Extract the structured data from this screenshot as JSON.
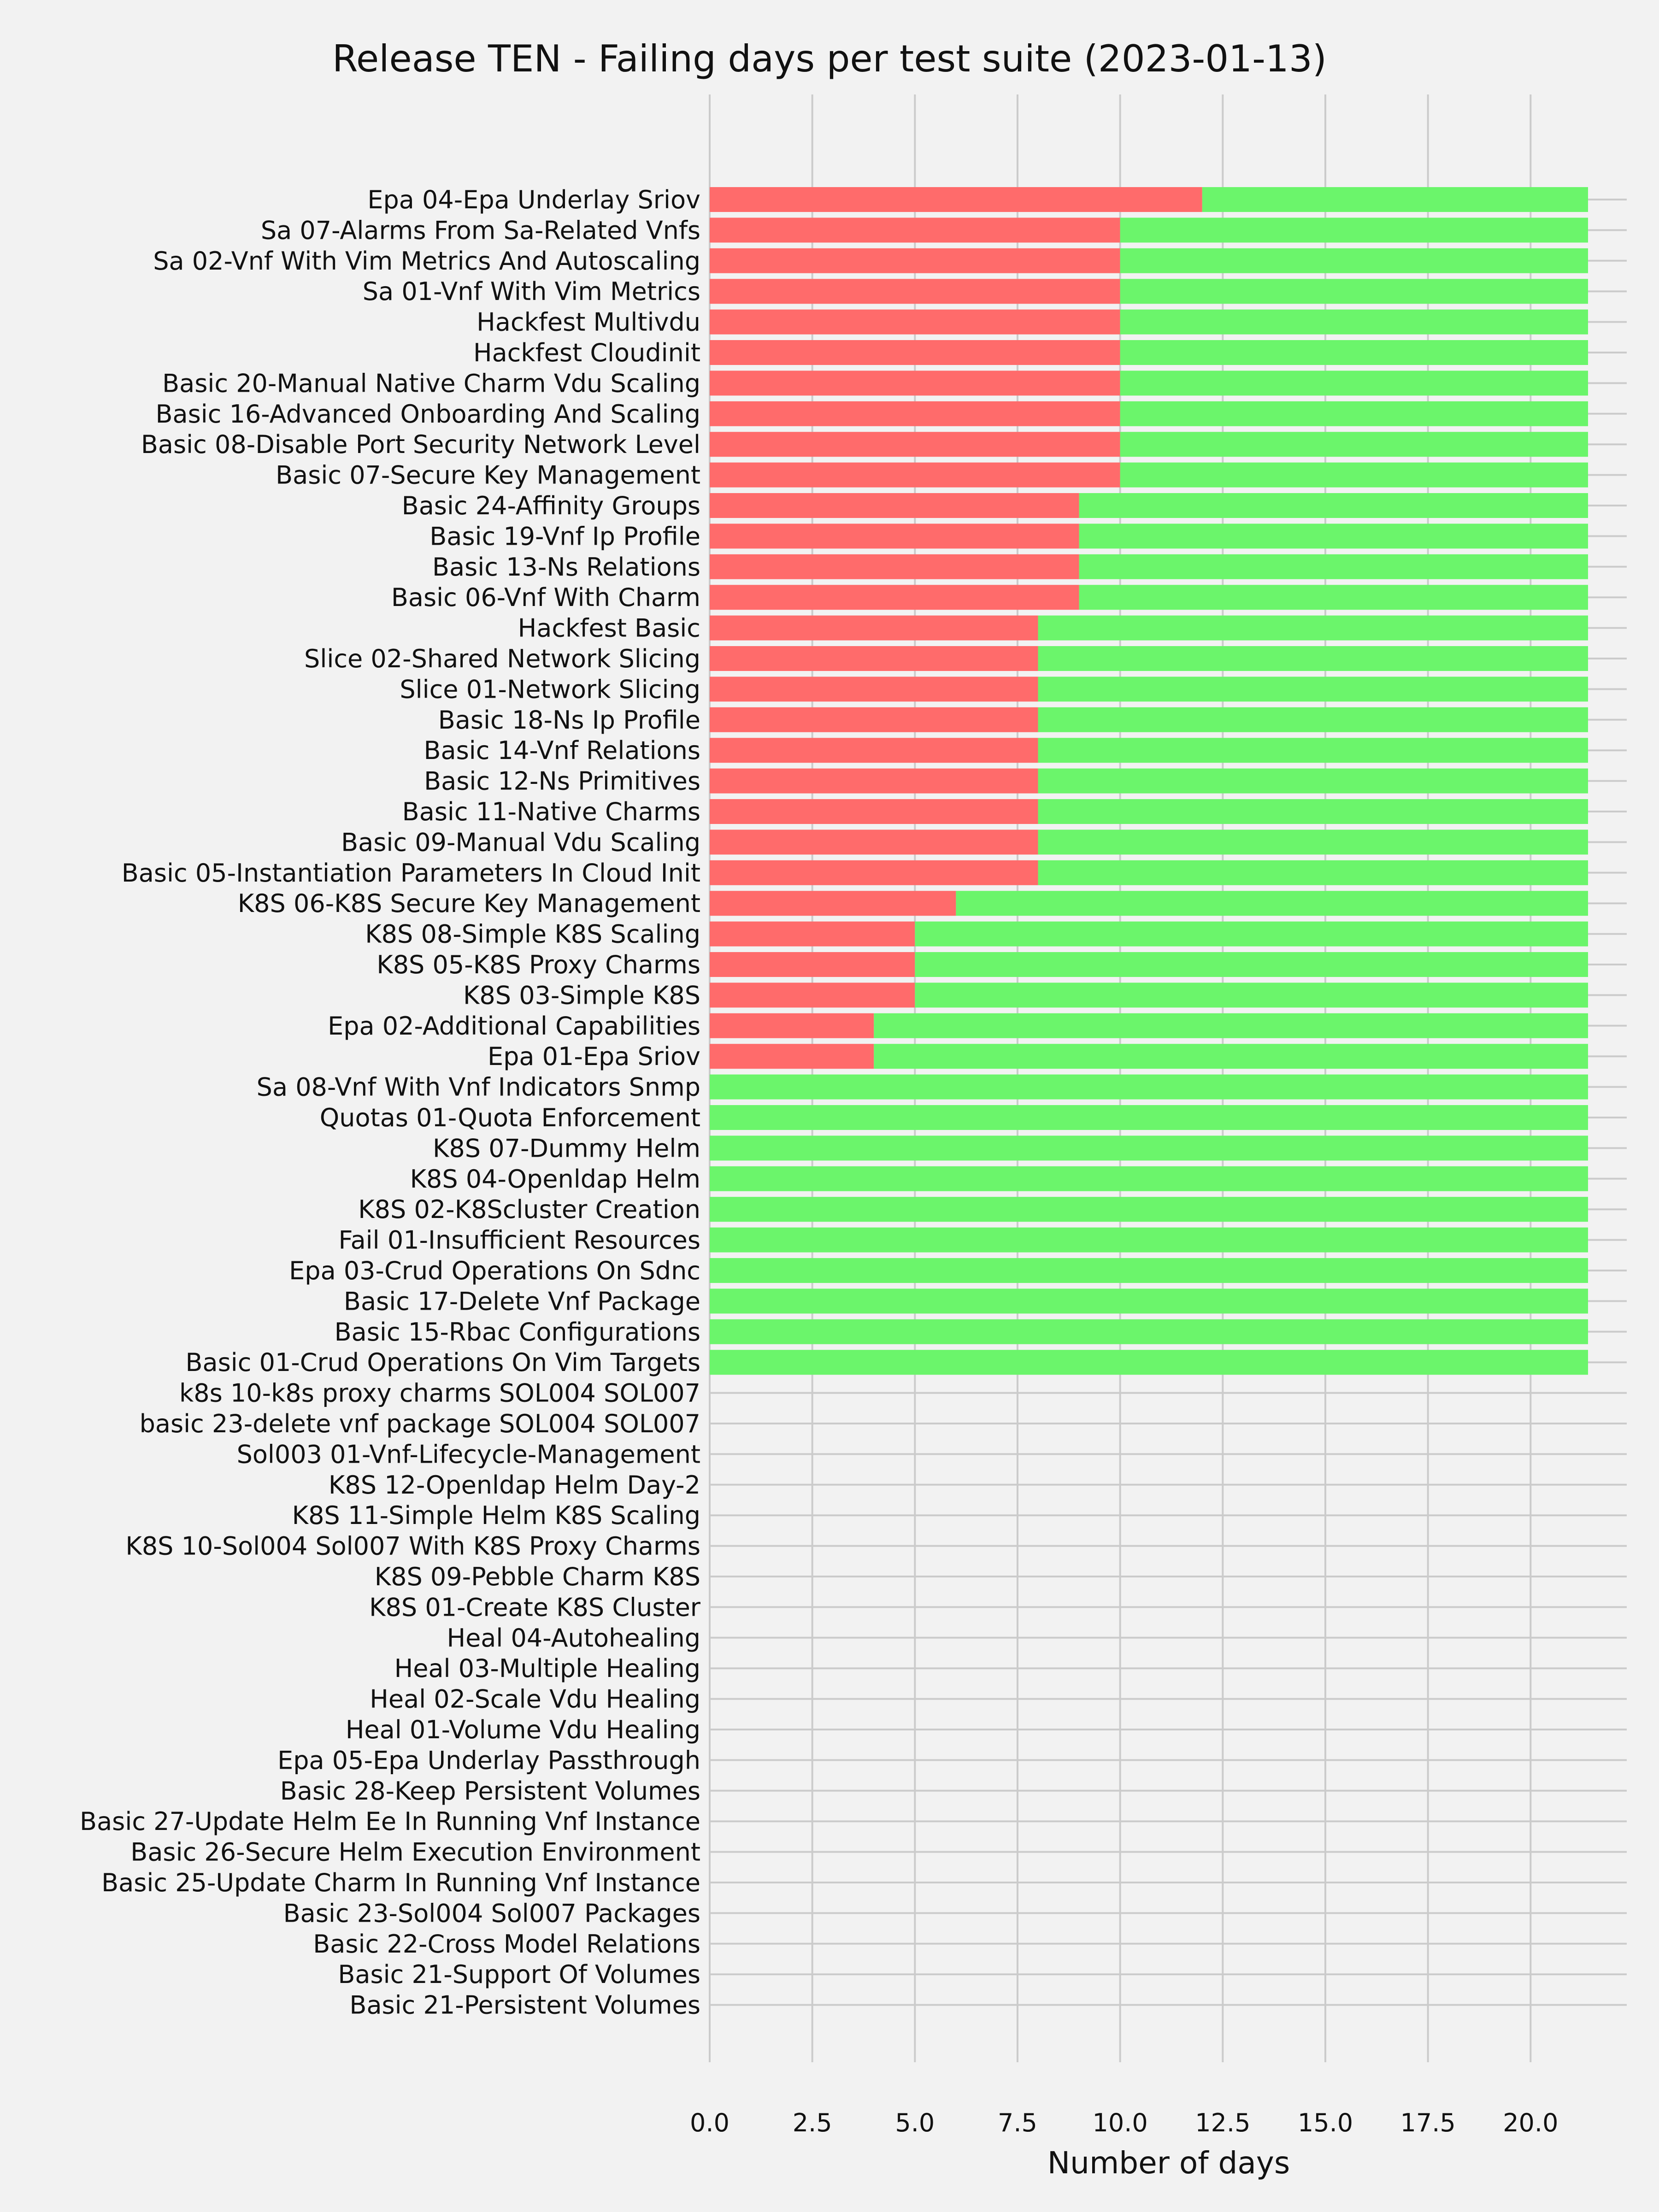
{
  "chart_data": {
    "type": "bar",
    "orientation": "horizontal",
    "stacked": true,
    "title": "Release TEN - Failing days per test suite (2023-01-13)",
    "xlabel": "Number of days",
    "ylabel": "",
    "xlim": [
      0,
      21.5
    ],
    "xticks": [
      "0.0",
      "2.5",
      "5.0",
      "7.5",
      "10.0",
      "12.5",
      "15.0",
      "17.5",
      "20.0"
    ],
    "grid": true,
    "categories": [
      "Epa 04-Epa Underlay Sriov",
      "Sa 07-Alarms From Sa-Related Vnfs",
      "Sa 02-Vnf With Vim Metrics And Autoscaling",
      "Sa 01-Vnf With Vim Metrics",
      "Hackfest Multivdu",
      "Hackfest Cloudinit",
      "Basic 20-Manual Native Charm Vdu Scaling",
      "Basic 16-Advanced Onboarding And Scaling",
      "Basic 08-Disable Port Security Network Level",
      "Basic 07-Secure Key Management",
      "Basic 24-Affinity Groups",
      "Basic 19-Vnf Ip Profile",
      "Basic 13-Ns Relations",
      "Basic 06-Vnf With Charm",
      "Hackfest Basic",
      "Slice 02-Shared Network Slicing",
      "Slice 01-Network Slicing",
      "Basic 18-Ns Ip Profile",
      "Basic 14-Vnf Relations",
      "Basic 12-Ns Primitives",
      "Basic 11-Native Charms",
      "Basic 09-Manual Vdu Scaling",
      "Basic 05-Instantiation Parameters In Cloud Init",
      "K8S 06-K8S Secure Key Management",
      "K8S 08-Simple K8S Scaling",
      "K8S 05-K8S Proxy Charms",
      "K8S 03-Simple K8S",
      "Epa 02-Additional Capabilities",
      "Epa 01-Epa Sriov",
      "Sa 08-Vnf With Vnf Indicators Snmp",
      "Quotas 01-Quota Enforcement",
      "K8S 07-Dummy Helm",
      "K8S 04-Openldap Helm",
      "K8S 02-K8Scluster Creation",
      "Fail 01-Insufficient Resources",
      "Epa 03-Crud Operations On Sdnc",
      "Basic 17-Delete Vnf Package",
      "Basic 15-Rbac Configurations",
      "Basic 01-Crud Operations On Vim Targets",
      "k8s 10-k8s proxy charms SOL004 SOL007",
      "basic 23-delete vnf package SOL004 SOL007",
      "Sol003 01-Vnf-Lifecycle-Management",
      "K8S 12-Openldap Helm Day-2",
      "K8S 11-Simple Helm K8S Scaling",
      "K8S 10-Sol004 Sol007 With K8S Proxy Charms",
      "K8S 09-Pebble Charm K8S",
      "K8S 01-Create K8S Cluster",
      "Heal 04-Autohealing",
      "Heal 03-Multiple Healing",
      "Heal 02-Scale Vdu Healing",
      "Heal 01-Volume Vdu Healing",
      "Epa 05-Epa Underlay Passthrough",
      "Basic 28-Keep Persistent Volumes",
      "Basic 27-Update Helm Ee In Running Vnf Instance",
      "Basic 26-Secure Helm Execution Environment",
      "Basic 25-Update Charm In Running Vnf Instance",
      "Basic 23-Sol004 Sol007 Packages",
      "Basic 22-Cross Model Relations",
      "Basic 21-Support Of Volumes",
      "Basic 21-Persistent Volumes"
    ],
    "series": [
      {
        "color": "#ff6b6b",
        "values": [
          12,
          10,
          10,
          10,
          10,
          10,
          10,
          10,
          10,
          10,
          9,
          9,
          9,
          9,
          8,
          8,
          8,
          8,
          8,
          8,
          8,
          8,
          8,
          6,
          5,
          5,
          5,
          4,
          4,
          0,
          0,
          0,
          0,
          0,
          0,
          0,
          0,
          0,
          0,
          0,
          0,
          0,
          0,
          0,
          0,
          0,
          0,
          0,
          0,
          0,
          0,
          0,
          0,
          0,
          0,
          0,
          0,
          0,
          0,
          0
        ]
      },
      {
        "color": "#6bf56b",
        "values": [
          9.4,
          11.4,
          11.4,
          11.4,
          11.4,
          11.4,
          11.4,
          11.4,
          11.4,
          11.4,
          12.4,
          12.4,
          12.4,
          12.4,
          13.4,
          13.4,
          13.4,
          13.4,
          13.4,
          13.4,
          13.4,
          13.4,
          13.4,
          15.4,
          16.4,
          16.4,
          16.4,
          17.4,
          17.4,
          21.4,
          21.4,
          21.4,
          21.4,
          21.4,
          21.4,
          21.4,
          21.4,
          21.4,
          21.4,
          0,
          0,
          0,
          0,
          0,
          0,
          0,
          0,
          0,
          0,
          0,
          0,
          0,
          0,
          0,
          0,
          0,
          0,
          0,
          0,
          0
        ]
      }
    ]
  }
}
